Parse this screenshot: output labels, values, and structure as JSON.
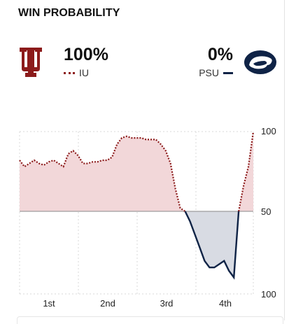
{
  "header": {
    "title": "WIN PROBABILITY"
  },
  "home": {
    "abbr": "IU",
    "pct": "100%",
    "color": "#8c1b1b",
    "logo": "indiana-trident-logo"
  },
  "away": {
    "abbr": "PSU",
    "pct": "0%",
    "color": "#0f2346",
    "logo": "penn-state-nittany-lion-logo"
  },
  "chart_data": {
    "type": "area",
    "y_tick_labels": [
      "100",
      "50",
      "100"
    ],
    "x_labels": [
      "1st",
      "2nd",
      "3rd",
      "4th"
    ],
    "baseline": 50,
    "ylim": [
      0,
      100
    ],
    "home_fill": "#f2d7d9",
    "away_fill": "#d8dbe3",
    "series": [
      {
        "values": [
          82,
          78,
          80,
          82,
          80,
          79,
          81,
          82,
          80,
          78,
          86,
          88,
          85,
          80,
          80,
          81,
          81,
          82,
          82,
          84,
          92,
          96,
          97,
          96,
          96,
          96,
          95,
          95,
          95,
          92,
          88,
          80,
          64,
          52,
          50,
          44,
          36,
          28,
          20,
          16,
          16,
          18,
          20,
          14,
          10,
          50,
          66,
          78,
          100
        ]
      }
    ]
  }
}
